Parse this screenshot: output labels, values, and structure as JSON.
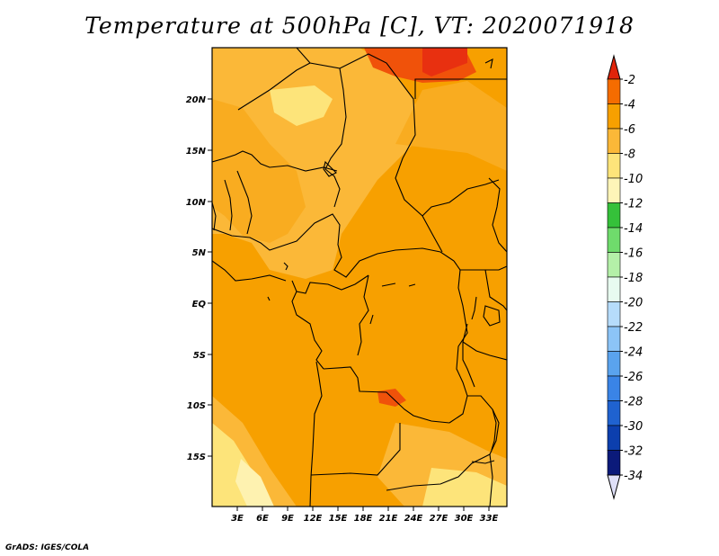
{
  "title": "Temperature at 500hPa [C], VT: 2020071918",
  "footer": "GrADS: IGES/COLA",
  "map": {
    "lat_ticks": [
      "20N",
      "15N",
      "10N",
      "5N",
      "EQ",
      "5S",
      "10S",
      "15S"
    ],
    "lon_ticks": [
      "3E",
      "6E",
      "9E",
      "12E",
      "15E",
      "18E",
      "21E",
      "24E",
      "27E",
      "30E",
      "33E"
    ],
    "fill_colors": {
      "-4_to_-2": "#f0520a",
      "-6_to_-4": "#f7a000",
      "-8_to_-6": "#fbb838",
      "-10_to_-8": "#fde47a",
      "-12_to_-10": "#fef2b0"
    }
  },
  "colorbar": {
    "labels": [
      "-2",
      "-4",
      "-6",
      "-8",
      "-10",
      "-12",
      "-14",
      "-16",
      "-18",
      "-20",
      "-22",
      "-24",
      "-26",
      "-28",
      "-30",
      "-32",
      "-34"
    ],
    "colors": [
      "#e0240a",
      "#f56c00",
      "#f7a000",
      "#fbb838",
      "#fde47a",
      "#fef5b8",
      "#35c13a",
      "#6fdb6c",
      "#b4f0a8",
      "#e8fbf0",
      "#b6dcfb",
      "#8cc4f7",
      "#5aa3ee",
      "#3a84e6",
      "#1f62d0",
      "#0c3fae",
      "#0b1a7a",
      "#dfe0f8"
    ]
  }
}
